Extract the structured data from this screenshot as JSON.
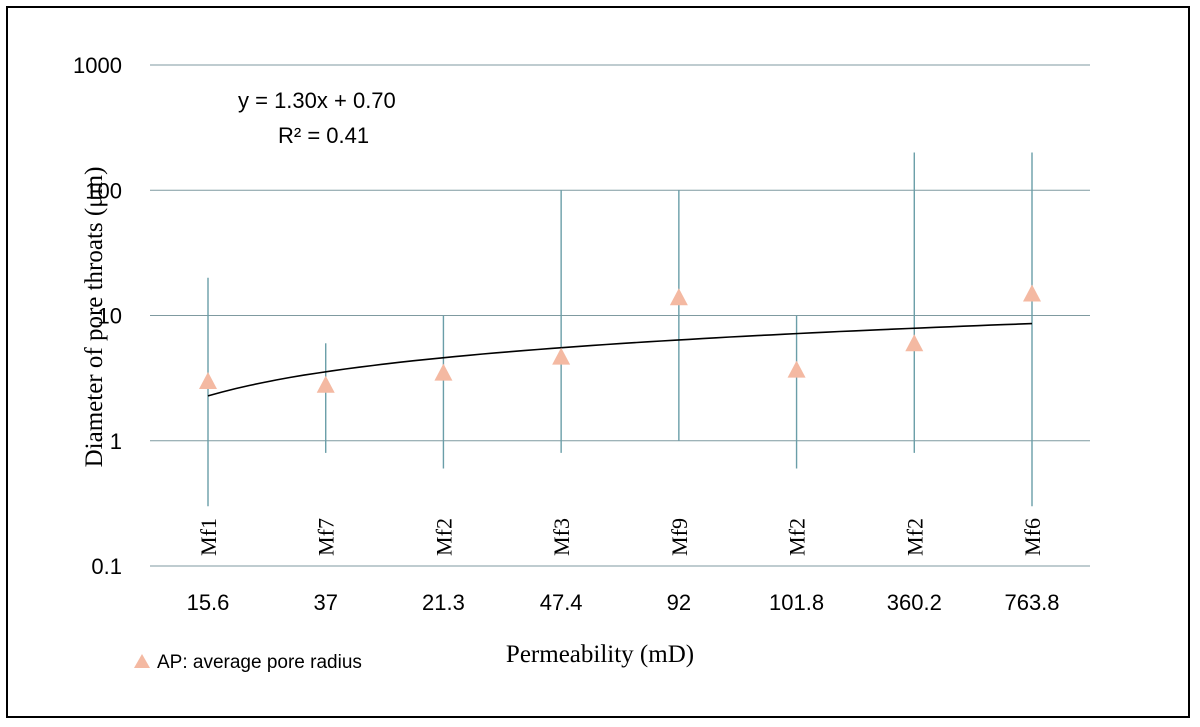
{
  "chart_data": {
    "type": "scatter",
    "xlabel": "Permeability (mD)",
    "ylabel": "Diameter of pore throats (μm)",
    "y_scale": "log",
    "ylim": [
      0.1,
      1000
    ],
    "y_ticks": [
      "0.1",
      "1",
      "10",
      "100",
      "1000"
    ],
    "grid": "horizontal",
    "categories": [
      "15.6",
      "37",
      "21.3",
      "47.4",
      "92",
      "101.8",
      "360.2",
      "763.8"
    ],
    "sample_labels": [
      "Mf1",
      "Mf7",
      "Mf2",
      "Mf3",
      "Mf9",
      "Mf2",
      "Mf2",
      "Mf6"
    ],
    "series": [
      {
        "name": "AP: average pore radius",
        "marker": "triangle",
        "color": "#f4b9a2",
        "values": [
          3.0,
          2.8,
          3.5,
          4.7,
          14.0,
          3.7,
          6.0,
          15.0
        ]
      }
    ],
    "ranges": [
      {
        "min": 0.3,
        "max": 20
      },
      {
        "min": 0.8,
        "max": 6
      },
      {
        "min": 0.6,
        "max": 10
      },
      {
        "min": 0.8,
        "max": 100
      },
      {
        "min": 1.0,
        "max": 100
      },
      {
        "min": 0.6,
        "max": 10
      },
      {
        "min": 0.8,
        "max": 200
      },
      {
        "min": 0.3,
        "max": 200
      }
    ],
    "range_color": "#6a9ea8",
    "trendline": {
      "type": "logarithmic",
      "equation": "y = 1.30x + 0.70",
      "r_squared": "R² = 0.41",
      "color": "#000000"
    },
    "legend": {
      "position": "bottom-left"
    }
  }
}
